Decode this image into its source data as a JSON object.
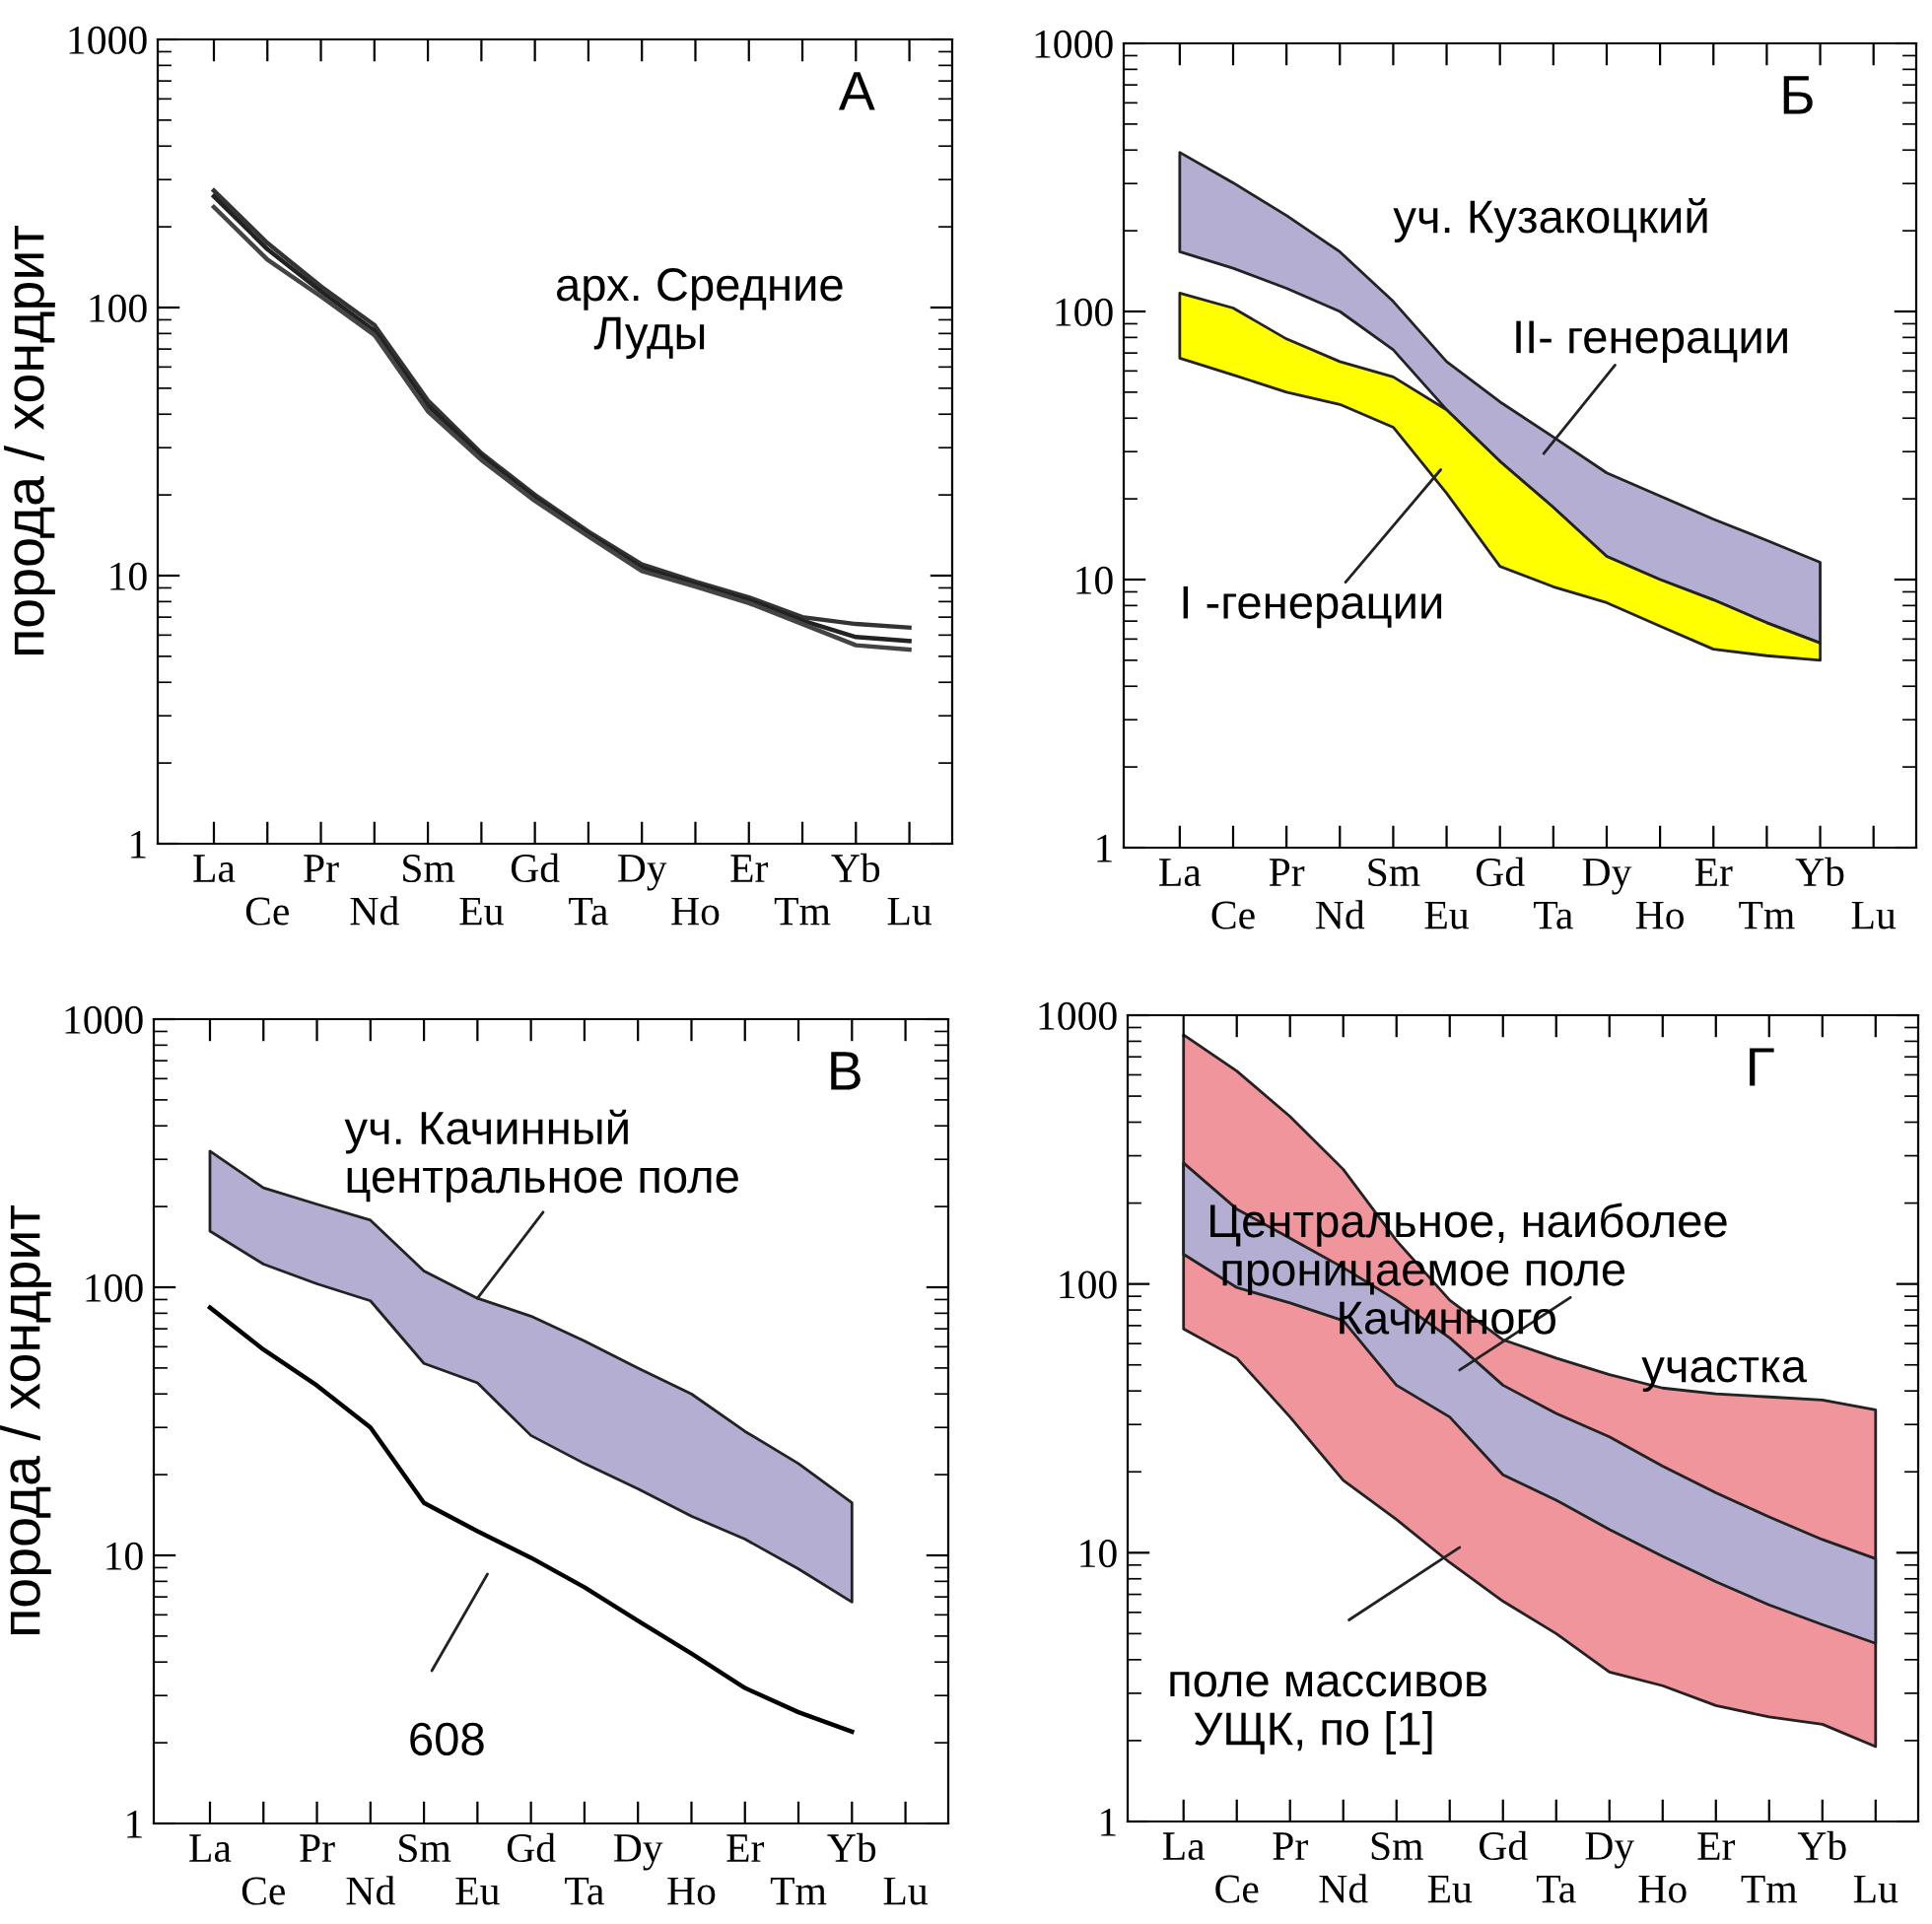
{
  "chart_data": [
    {
      "type": "line",
      "ylabel": "порода / хондрит",
      "log": "y",
      "ylim": [
        1,
        1000
      ],
      "yticks": [
        1,
        10,
        100,
        1000
      ],
      "categories": [
        "La",
        "Ce",
        "Pr",
        "Nd",
        "Sm",
        "Eu",
        "Gd",
        "Ta",
        "Dy",
        "Ho",
        "Er",
        "Tm",
        "Yb",
        "Lu"
      ],
      "annotations": [
        "А",
        "арх. Средние\n   Луды"
      ],
      "series": [
        {
          "color": "#333333",
          "values": [
            273,
            174,
            120,
            86,
            45,
            28.6,
            20,
            14.6,
            11,
            9.5,
            8.3,
            7.0,
            6.6,
            6.4
          ]
        },
        {
          "color": "#222222",
          "values": [
            260,
            165,
            115,
            82,
            43,
            28,
            19.5,
            14.3,
            10.7,
            9.3,
            8.1,
            6.8,
            5.9,
            5.7
          ]
        },
        {
          "color": "#444444",
          "values": [
            237,
            151,
            110,
            79,
            41,
            27,
            19,
            14,
            10.4,
            9.1,
            7.9,
            6.6,
            5.5,
            5.3
          ]
        }
      ]
    },
    {
      "type": "line",
      "log": "y",
      "ylim": [
        1,
        1000
      ],
      "yticks": [
        1,
        10,
        100,
        1000
      ],
      "categories": [
        "La",
        "Ce",
        "Pr",
        "Nd",
        "Sm",
        "Eu",
        "Gd",
        "Ta",
        "Dy",
        "Ho",
        "Er",
        "Tm",
        "Yb",
        "Lu"
      ],
      "annotations": [
        "Б",
        "уч. Кузакоцкий",
        "II- генерации",
        "I -генерации"
      ],
      "series": [
        {
          "color": "#b4aed3",
          "values": [
            null,
            null,
            null,
            null,
            null,
            null,
            null,
            null,
            null,
            null,
            null,
            null,
            null,
            null
          ],
          "upper": [
            392,
            302,
            228,
            167,
            109,
            65,
            46,
            34,
            25,
            20.5,
            16.8,
            14,
            11.6,
            null
          ],
          "lower": [
            167,
            145,
            122,
            100,
            72,
            43,
            27.6,
            18.6,
            12.2,
            10,
            8.4,
            6.9,
            5.8,
            null
          ]
        },
        {
          "color": "#ffff00",
          "values": [
            null,
            null,
            null,
            null,
            null,
            null,
            null,
            null,
            null,
            null,
            null,
            null,
            null,
            null
          ],
          "upper": [
            117,
            103,
            79,
            65,
            57,
            43,
            27.6,
            18.6,
            12.2,
            10,
            8.4,
            6.9,
            5.8,
            null
          ],
          "lower": [
            67,
            58,
            50,
            45,
            37,
            21,
            11.2,
            9.4,
            8.2,
            6.7,
            5.5,
            5.2,
            5.0,
            null
          ]
        }
      ]
    },
    {
      "type": "line",
      "ylabel": "порода / хондрит",
      "log": "y",
      "ylim": [
        1,
        1000
      ],
      "yticks": [
        1,
        10,
        100,
        1000
      ],
      "categories": [
        "La",
        "Ce",
        "Pr",
        "Nd",
        "Sm",
        "Eu",
        "Gd",
        "Ta",
        "Dy",
        "Ho",
        "Er",
        "Tm",
        "Yb",
        "Lu"
      ],
      "annotations": [
        "В",
        {
          "text": "уч. Качинный\nцентральное поле",
          "x": "Eu",
          "y": 91
        },
        "608"
      ],
      "series": [
        {
          "color": "#b4aed3",
          "values": [
            null,
            null,
            null,
            null,
            null,
            null,
            null,
            null,
            null,
            null,
            null,
            null,
            null,
            null
          ],
          "upper": [
            322,
            235,
            204,
            178,
            115,
            91,
            78,
            63,
            50,
            40,
            29,
            22,
            15.7,
            null
          ],
          "lower": [
            162,
            122,
            103,
            89,
            52,
            44,
            28,
            22,
            17.7,
            14,
            11.5,
            8.9,
            6.7,
            null
          ]
        },
        {
          "color": "#000000",
          "values": [
            84,
            58.6,
            43,
            30,
            15.7,
            12.3,
            9.8,
            7.6,
            5.7,
            4.3,
            3.2,
            2.6,
            2.2,
            null
          ]
        }
      ]
    },
    {
      "type": "line",
      "log": "y",
      "ylim": [
        1,
        1000
      ],
      "yticks": [
        1,
        10,
        100,
        1000
      ],
      "categories": [
        "La",
        "Ce",
        "Pr",
        "Nd",
        "Sm",
        "Eu",
        "Gd",
        "Ta",
        "Dy",
        "Ho",
        "Er",
        "Tm",
        "Yb",
        "Lu"
      ],
      "annotations": [
        "Г",
        "Центральное, наиболее\n проницаемое поле\n          Качинного",
        "участка",
        "поле массивов\n  УЩК, по [1]"
      ],
      "series": [
        {
          "color": "#f0959c",
          "values": [
            null,
            null,
            null,
            null,
            null,
            null,
            null,
            null,
            null,
            null,
            null,
            null,
            null,
            null
          ],
          "upper": [
            845,
            620,
            420,
            267,
            145,
            87,
            62,
            53,
            46,
            41,
            39,
            38,
            37,
            34
          ],
          "lower": [
            68,
            53,
            32,
            18.6,
            13.3,
            9.2,
            6.6,
            5.0,
            3.6,
            3.2,
            2.7,
            2.45,
            2.3,
            1.9
          ]
        },
        {
          "color": "#b4aed3",
          "values": [
            null,
            null,
            null,
            null,
            null,
            null,
            null,
            null,
            null,
            null,
            null,
            null,
            null,
            null
          ],
          "upper": [
            282,
            190,
            148,
            115,
            87,
            63,
            42,
            33,
            27,
            21,
            16.7,
            13.6,
            11.2,
            9.5
          ],
          "lower": [
            129,
            97,
            85,
            73,
            42,
            32,
            19.5,
            15.7,
            12.2,
            9.7,
            7.8,
            6.4,
            5.4,
            4.6
          ]
        }
      ]
    }
  ]
}
